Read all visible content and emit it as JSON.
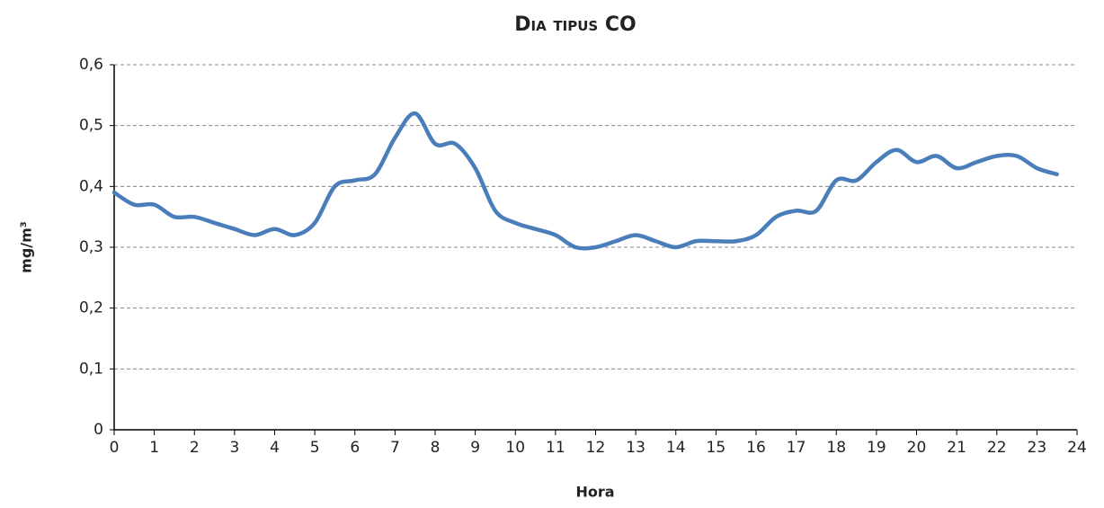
{
  "chart_data": {
    "type": "line",
    "title": "Dia tipus CO",
    "x_label": "Hora",
    "y_label": "mg/m³",
    "x": [
      0,
      0.5,
      1,
      1.5,
      2,
      2.5,
      3,
      3.5,
      4,
      4.5,
      5,
      5.5,
      6,
      6.5,
      7,
      7.5,
      8,
      8.5,
      9,
      9.5,
      10,
      10.5,
      11,
      11.5,
      12,
      12.5,
      13,
      13.5,
      14,
      14.5,
      15,
      15.5,
      16,
      16.5,
      17,
      17.5,
      18,
      18.5,
      19,
      19.5,
      20,
      20.5,
      21,
      21.5,
      22,
      22.5,
      23,
      23.5
    ],
    "series": [
      {
        "name": "CO",
        "color": "#4a7ebb",
        "values": [
          0.39,
          0.37,
          0.37,
          0.35,
          0.35,
          0.34,
          0.33,
          0.32,
          0.33,
          0.32,
          0.34,
          0.4,
          0.41,
          0.42,
          0.48,
          0.52,
          0.47,
          0.47,
          0.43,
          0.36,
          0.34,
          0.33,
          0.32,
          0.3,
          0.3,
          0.31,
          0.32,
          0.31,
          0.3,
          0.31,
          0.31,
          0.31,
          0.32,
          0.35,
          0.36,
          0.36,
          0.41,
          0.41,
          0.44,
          0.46,
          0.44,
          0.45,
          0.43,
          0.44,
          0.45,
          0.45,
          0.43,
          0.42
        ]
      }
    ],
    "xlim": [
      0,
      24
    ],
    "xticks": [
      0,
      1,
      2,
      3,
      4,
      5,
      6,
      7,
      8,
      9,
      10,
      11,
      12,
      13,
      14,
      15,
      16,
      17,
      18,
      19,
      20,
      21,
      22,
      23,
      24
    ],
    "ylim": [
      0,
      0.6
    ],
    "yticks": [
      0,
      {
        "value": 0.1,
        "label": "0,1"
      },
      {
        "value": 0.2,
        "label": "0,2"
      },
      {
        "value": 0.3,
        "label": "0,3"
      },
      {
        "value": 0.4,
        "label": "0,4"
      },
      {
        "value": 0.5,
        "label": "0,5"
      },
      {
        "value": 0.6,
        "label": "0,6"
      }
    ],
    "grid": true
  }
}
